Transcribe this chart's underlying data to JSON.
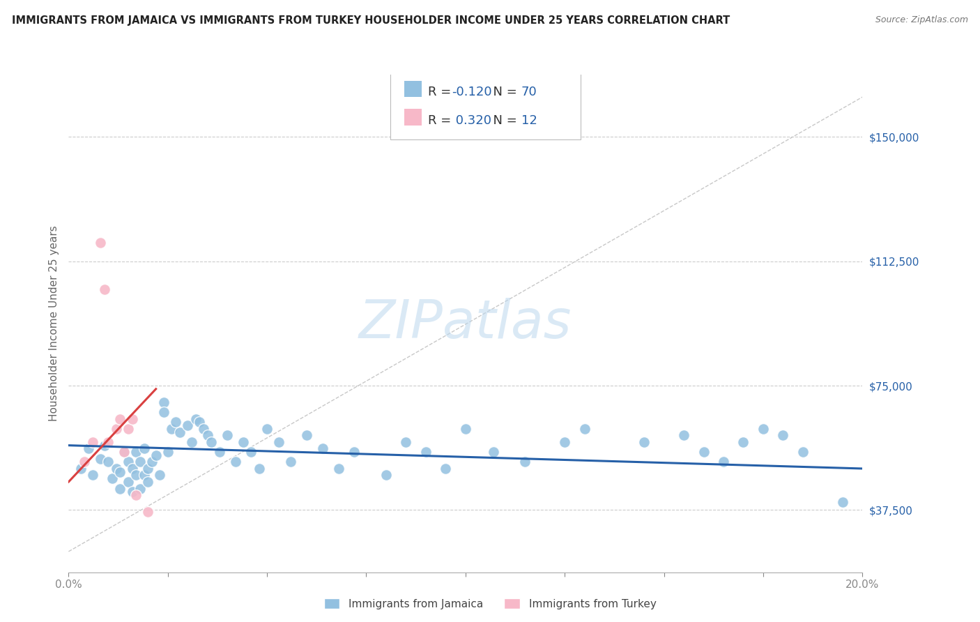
{
  "title": "IMMIGRANTS FROM JAMAICA VS IMMIGRANTS FROM TURKEY HOUSEHOLDER INCOME UNDER 25 YEARS CORRELATION CHART",
  "source": "Source: ZipAtlas.com",
  "ylabel": "Householder Income Under 25 years",
  "x_min": 0.0,
  "x_max": 0.2,
  "y_min": 18750,
  "y_max": 168750,
  "y_ticks": [
    37500,
    75000,
    112500,
    150000
  ],
  "y_tick_labels": [
    "$37,500",
    "$75,000",
    "$112,500",
    "$150,000"
  ],
  "x_ticks": [
    0.0,
    0.025,
    0.05,
    0.075,
    0.1,
    0.125,
    0.15,
    0.175,
    0.2
  ],
  "jamaica_color": "#92C0E0",
  "turkey_color": "#F7B8C8",
  "jamaica_R": -0.12,
  "jamaica_N": 70,
  "turkey_R": 0.32,
  "turkey_N": 12,
  "jamaica_line_color": "#2660A8",
  "turkey_line_color": "#D94040",
  "r_value_color": "#2660A8",
  "watermark_color": "#BDD8EE",
  "jamaica_points_x": [
    0.003,
    0.005,
    0.006,
    0.008,
    0.009,
    0.01,
    0.011,
    0.012,
    0.013,
    0.013,
    0.014,
    0.015,
    0.015,
    0.016,
    0.016,
    0.017,
    0.017,
    0.018,
    0.018,
    0.019,
    0.019,
    0.02,
    0.02,
    0.021,
    0.022,
    0.023,
    0.024,
    0.024,
    0.025,
    0.026,
    0.027,
    0.028,
    0.03,
    0.031,
    0.032,
    0.033,
    0.034,
    0.035,
    0.036,
    0.038,
    0.04,
    0.042,
    0.044,
    0.046,
    0.048,
    0.05,
    0.053,
    0.056,
    0.06,
    0.064,
    0.068,
    0.072,
    0.08,
    0.085,
    0.09,
    0.095,
    0.1,
    0.107,
    0.115,
    0.125,
    0.13,
    0.145,
    0.155,
    0.16,
    0.165,
    0.17,
    0.175,
    0.18,
    0.185,
    0.195
  ],
  "jamaica_points_y": [
    50000,
    56000,
    48000,
    53000,
    57000,
    52000,
    47000,
    50000,
    49000,
    44000,
    55000,
    46000,
    52000,
    50000,
    43000,
    48000,
    55000,
    44000,
    52000,
    48000,
    56000,
    50000,
    46000,
    52000,
    54000,
    48000,
    70000,
    67000,
    55000,
    62000,
    64000,
    61000,
    63000,
    58000,
    65000,
    64000,
    62000,
    60000,
    58000,
    55000,
    60000,
    52000,
    58000,
    55000,
    50000,
    62000,
    58000,
    52000,
    60000,
    56000,
    50000,
    55000,
    48000,
    58000,
    55000,
    50000,
    62000,
    55000,
    52000,
    58000,
    62000,
    58000,
    60000,
    55000,
    52000,
    58000,
    62000,
    60000,
    55000,
    40000
  ],
  "turkey_points_x": [
    0.004,
    0.006,
    0.008,
    0.009,
    0.01,
    0.012,
    0.013,
    0.014,
    0.015,
    0.016,
    0.017,
    0.02
  ],
  "turkey_points_y": [
    52000,
    58000,
    118000,
    104000,
    58000,
    62000,
    65000,
    55000,
    62000,
    65000,
    42000,
    37000
  ],
  "legend_jamaica_label": "R = -0.120   N = 70",
  "legend_turkey_label": "R =  0.320   N = 12",
  "bottom_legend_jamaica": "Immigrants from Jamaica",
  "bottom_legend_turkey": "Immigrants from Turkey"
}
